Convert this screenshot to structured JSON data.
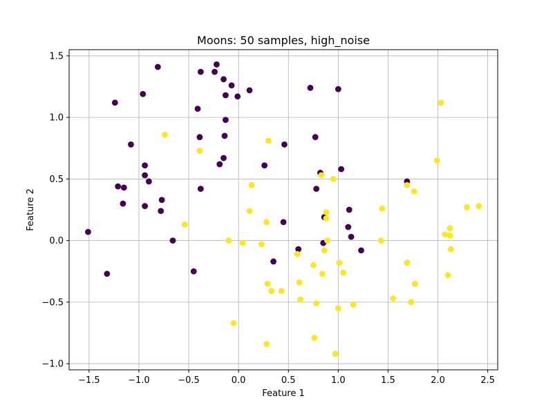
{
  "chart_data": {
    "type": "scatter",
    "title": "Moons: 50 samples, high_noise",
    "xlabel": "Feature 1",
    "ylabel": "Feature 2",
    "xlim": [
      -1.7,
      2.6
    ],
    "ylim": [
      -1.05,
      1.55
    ],
    "xticks": [
      -1.5,
      -1.0,
      -0.5,
      0.0,
      0.5,
      1.0,
      1.5,
      2.0,
      2.5
    ],
    "xtick_labels": [
      "−1.5",
      "−1.0",
      "−0.5",
      "0.0",
      "0.5",
      "1.0",
      "1.5",
      "2.0",
      "2.5"
    ],
    "yticks": [
      -1.0,
      -0.5,
      0.0,
      0.5,
      1.0,
      1.5
    ],
    "ytick_labels": [
      "−1.0",
      "−0.5",
      "0.0",
      "0.5",
      "1.0",
      "1.5"
    ],
    "grid": true,
    "series": [
      {
        "color": "#440154",
        "points": [
          [
            -1.51,
            0.07
          ],
          [
            -1.32,
            -0.27
          ],
          [
            -1.24,
            1.12
          ],
          [
            -1.21,
            0.44
          ],
          [
            -1.16,
            0.3
          ],
          [
            -1.15,
            0.43
          ],
          [
            -1.08,
            0.78
          ],
          [
            -0.96,
            1.19
          ],
          [
            -0.94,
            0.61
          ],
          [
            -0.94,
            0.53
          ],
          [
            -0.94,
            0.28
          ],
          [
            -0.9,
            0.48
          ],
          [
            -0.81,
            1.41
          ],
          [
            -0.78,
            0.24
          ],
          [
            -0.77,
            0.33
          ],
          [
            -0.66,
            0.0
          ],
          [
            -0.45,
            -0.25
          ],
          [
            -0.41,
            1.07
          ],
          [
            -0.39,
            0.84
          ],
          [
            -0.38,
            1.37
          ],
          [
            -0.38,
            0.42
          ],
          [
            -0.24,
            1.37
          ],
          [
            -0.22,
            1.43
          ],
          [
            -0.19,
            0.62
          ],
          [
            -0.15,
            1.31
          ],
          [
            -0.15,
            0.67
          ],
          [
            -0.14,
            0.85
          ],
          [
            -0.13,
            1.18
          ],
          [
            -0.13,
            0.98
          ],
          [
            -0.07,
            1.26
          ],
          [
            -0.01,
            1.17
          ],
          [
            0.11,
            1.22
          ],
          [
            0.26,
            0.61
          ],
          [
            0.35,
            -0.17
          ],
          [
            0.45,
            0.15
          ],
          [
            0.46,
            0.78
          ],
          [
            0.6,
            -0.07
          ],
          [
            0.72,
            1.24
          ],
          [
            0.77,
            0.84
          ],
          [
            0.78,
            0.42
          ],
          [
            0.82,
            0.55
          ],
          [
            0.85,
            -0.02
          ],
          [
            0.86,
            0.19
          ],
          [
            1.0,
            1.23
          ],
          [
            1.03,
            0.58
          ],
          [
            1.1,
            0.11
          ],
          [
            1.11,
            0.25
          ],
          [
            1.13,
            0.03
          ],
          [
            1.23,
            -0.08
          ],
          [
            1.69,
            0.48
          ]
        ]
      },
      {
        "color": "#fde725",
        "points": [
          [
            -0.74,
            0.86
          ],
          [
            -0.54,
            0.13
          ],
          [
            -0.39,
            0.73
          ],
          [
            -0.1,
            0.0
          ],
          [
            -0.05,
            -0.67
          ],
          [
            0.04,
            -0.02
          ],
          [
            0.11,
            0.24
          ],
          [
            0.13,
            0.45
          ],
          [
            0.23,
            -0.03
          ],
          [
            0.28,
            0.15
          ],
          [
            0.28,
            -0.84
          ],
          [
            0.29,
            -0.35
          ],
          [
            0.3,
            0.81
          ],
          [
            0.33,
            -0.41
          ],
          [
            0.43,
            -0.41
          ],
          [
            0.59,
            -0.11
          ],
          [
            0.61,
            -0.34
          ],
          [
            0.62,
            -0.48
          ],
          [
            0.75,
            -0.2
          ],
          [
            0.76,
            -0.79
          ],
          [
            0.78,
            -0.51
          ],
          [
            0.83,
            0.53
          ],
          [
            0.84,
            -0.27
          ],
          [
            0.86,
            -0.08
          ],
          [
            0.88,
            0.18
          ],
          [
            0.88,
            0.23
          ],
          [
            0.89,
            0.0
          ],
          [
            0.95,
            0.5
          ],
          [
            0.97,
            -0.92
          ],
          [
            1.0,
            -0.55
          ],
          [
            1.01,
            -0.18
          ],
          [
            1.05,
            -0.26
          ],
          [
            1.15,
            -0.52
          ],
          [
            1.43,
            0.0
          ],
          [
            1.44,
            0.26
          ],
          [
            1.55,
            -0.47
          ],
          [
            1.69,
            -0.18
          ],
          [
            1.69,
            0.45
          ],
          [
            1.73,
            -0.5
          ],
          [
            1.76,
            0.4
          ],
          [
            1.77,
            -0.35
          ],
          [
            1.99,
            0.65
          ],
          [
            2.03,
            1.12
          ],
          [
            2.07,
            0.05
          ],
          [
            2.1,
            -0.28
          ],
          [
            2.12,
            0.1
          ],
          [
            2.12,
            0.04
          ],
          [
            2.13,
            -0.07
          ],
          [
            2.29,
            0.27
          ],
          [
            2.41,
            0.28
          ]
        ]
      }
    ]
  }
}
